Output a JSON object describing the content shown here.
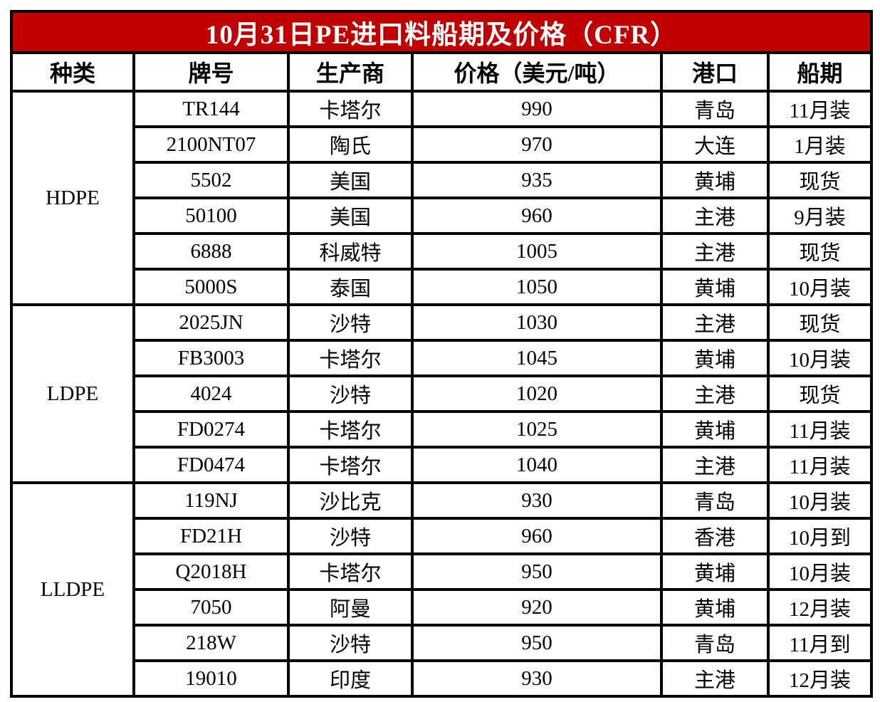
{
  "table": {
    "title": "10月31日PE进口料船期及价格（CFR）",
    "columns": [
      "种类",
      "牌号",
      "生产商",
      "价格（美元/吨）",
      "港口",
      "船期"
    ],
    "groups": [
      {
        "category": "HDPE",
        "rows": [
          [
            "TR144",
            "卡塔尔",
            "990",
            "青岛",
            "11月装"
          ],
          [
            "2100NT07",
            "陶氏",
            "970",
            "大连",
            "1月装"
          ],
          [
            "5502",
            "美国",
            "935",
            "黄埔",
            "现货"
          ],
          [
            "50100",
            "美国",
            "960",
            "主港",
            "9月装"
          ],
          [
            "6888",
            "科威特",
            "1005",
            "主港",
            "现货"
          ],
          [
            "5000S",
            "泰国",
            "1050",
            "黄埔",
            "10月装"
          ]
        ]
      },
      {
        "category": "LDPE",
        "rows": [
          [
            "2025JN",
            "沙特",
            "1030",
            "主港",
            "现货"
          ],
          [
            "FB3003",
            "卡塔尔",
            "1045",
            "黄埔",
            "10月装"
          ],
          [
            "4024",
            "沙特",
            "1020",
            "主港",
            "现货"
          ],
          [
            "FD0274",
            "卡塔尔",
            "1025",
            "黄埔",
            "11月装"
          ],
          [
            "FD0474",
            "卡塔尔",
            "1040",
            "主港",
            "11月装"
          ]
        ]
      },
      {
        "category": "LLDPE",
        "rows": [
          [
            "119NJ",
            "沙比克",
            "930",
            "青岛",
            "10月装"
          ],
          [
            "FD21H",
            "沙特",
            "960",
            "香港",
            "10月到"
          ],
          [
            "Q2018H",
            "卡塔尔",
            "950",
            "黄埔",
            "10月装"
          ],
          [
            "7050",
            "阿曼",
            "920",
            "黄埔",
            "12月装"
          ],
          [
            "218W",
            "沙特",
            "950",
            "青岛",
            "11月到"
          ],
          [
            "19010",
            "印度",
            "930",
            "主港",
            "12月装"
          ]
        ]
      }
    ]
  },
  "colors": {
    "title_bg": "#C00000",
    "title_text": "#FFFFFF",
    "border": "#000000",
    "cell_text": "#000000"
  }
}
